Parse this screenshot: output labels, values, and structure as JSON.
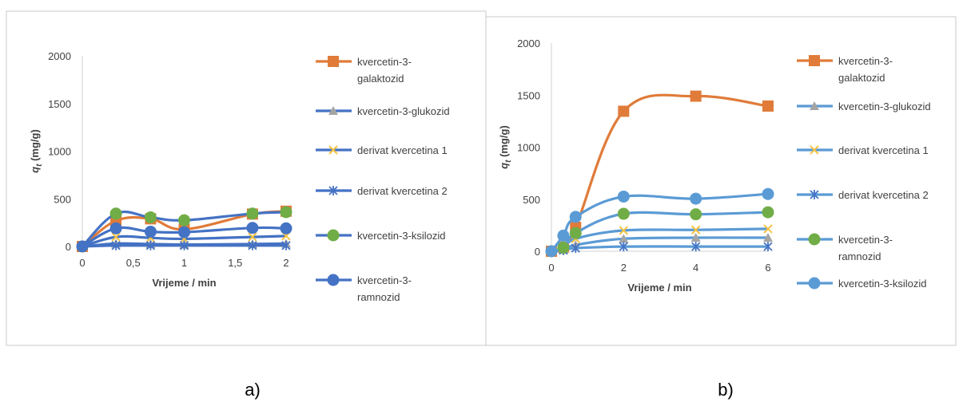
{
  "panel_labels": [
    "a)",
    "b)"
  ],
  "chart_data": [
    {
      "type": "line",
      "title": "",
      "xlabel": "Vrijeme / min",
      "ylabel": "q",
      "ylabel_sub": "t",
      "ylabel_unit": "(mg/g)",
      "xlim": [
        0,
        2
      ],
      "ylim": [
        0,
        2000
      ],
      "xticks": [
        0,
        0.5,
        1,
        1.5,
        2
      ],
      "xtick_labels": [
        "0",
        "0,5",
        "1",
        "1,5",
        "2"
      ],
      "yticks": [
        0,
        500,
        1000,
        1500,
        2000
      ],
      "ytick_labels": [
        "0",
        "500",
        "1000",
        "1500",
        "2000"
      ],
      "x": [
        0,
        0.33,
        0.67,
        1,
        1.67,
        2
      ],
      "legend_position": "right",
      "series": [
        {
          "name": "kvercetin-3-galaktozid",
          "label_lines": [
            "kvercetin-3-",
            "galaktozid"
          ],
          "color": "#e07b39",
          "marker_color": "#e07b39",
          "marker": "square",
          "values": [
            0,
            270,
            290,
            180,
            340,
            370
          ]
        },
        {
          "name": "kvercetin-3-glukozid",
          "label_lines": [
            "kvercetin-3-glukozid"
          ],
          "color": "#4472c4",
          "marker_color": "#a5a5a5",
          "marker": "triangle",
          "values": [
            0,
            30,
            25,
            20,
            25,
            30
          ]
        },
        {
          "name": "derivat kvercetina 1",
          "label_lines": [
            "derivat kvercetina 1"
          ],
          "color": "#4472c4",
          "marker_color": "#f5c342",
          "marker": "x",
          "values": [
            0,
            100,
            90,
            80,
            100,
            110
          ]
        },
        {
          "name": "derivat kvercetina 2",
          "label_lines": [
            "derivat kvercetina 2"
          ],
          "color": "#4472c4",
          "marker_color": "#4472c4",
          "marker": "star",
          "values": [
            0,
            10,
            10,
            10,
            10,
            10
          ]
        },
        {
          "name": "kvercetin-3-ksilozid",
          "label_lines": [
            "kvercetin-3-ksilozid"
          ],
          "color": "#4472c4",
          "marker_color": "#70ad47",
          "marker": "circle",
          "values": [
            0,
            345,
            305,
            275,
            345,
            360
          ]
        },
        {
          "name": "kvercetin-3-ramnozid",
          "label_lines": [
            "kvercetin-3-",
            "ramnozid"
          ],
          "color": "#4472c4",
          "marker_color": "#4472c4",
          "marker": "circle",
          "values": [
            0,
            190,
            155,
            150,
            195,
            190
          ]
        }
      ]
    },
    {
      "type": "line",
      "title": "",
      "xlabel": "Vrijeme / min",
      "ylabel": "q",
      "ylabel_sub": "t",
      "ylabel_unit": "(mg/g)",
      "xlim": [
        0,
        6
      ],
      "ylim": [
        0,
        2000
      ],
      "xticks": [
        0,
        2,
        4,
        6
      ],
      "xtick_labels": [
        "0",
        "2",
        "4",
        "6"
      ],
      "yticks": [
        0,
        500,
        1000,
        1500,
        2000
      ],
      "ytick_labels": [
        "0",
        "500",
        "1000",
        "1500",
        "2000"
      ],
      "x": [
        0,
        0.33,
        0.67,
        2,
        4,
        6
      ],
      "legend_position": "right",
      "series": [
        {
          "name": "kvercetin-3-galaktozid",
          "label_lines": [
            "kvercetin-3-",
            "galaktozid"
          ],
          "color": "#e07b39",
          "marker_color": "#e07b39",
          "marker": "square",
          "values": [
            0,
            40,
            230,
            1345,
            1490,
            1395
          ]
        },
        {
          "name": "kvercetin-3-glukozid",
          "label_lines": [
            "kvercetin-3-glukozid"
          ],
          "color": "#5b9bd5",
          "marker_color": "#a5a5a5",
          "marker": "triangle",
          "values": [
            0,
            15,
            60,
            120,
            130,
            130
          ]
        },
        {
          "name": "derivat kvercetina 1",
          "label_lines": [
            "derivat kvercetina 1"
          ],
          "color": "#5b9bd5",
          "marker_color": "#f5c342",
          "marker": "x",
          "values": [
            0,
            30,
            120,
            200,
            205,
            215
          ]
        },
        {
          "name": "derivat kvercetina 2",
          "label_lines": [
            "derivat kvercetina 2"
          ],
          "color": "#5b9bd5",
          "marker_color": "#4472c4",
          "marker": "star",
          "values": [
            0,
            10,
            30,
            45,
            45,
            45
          ]
        },
        {
          "name": "kvercetin-3-ramnozid",
          "label_lines": [
            "kvercetin-3-",
            "ramnozid"
          ],
          "color": "#5b9bd5",
          "marker_color": "#70ad47",
          "marker": "circle",
          "values": [
            0,
            35,
            175,
            360,
            355,
            375
          ]
        },
        {
          "name": "kvercetin-3-ksilozid",
          "label_lines": [
            "kvercetin-3-ksilozid"
          ],
          "color": "#5b9bd5",
          "marker_color": "#5b9bd5",
          "marker": "circle",
          "values": [
            0,
            150,
            330,
            525,
            505,
            550
          ]
        }
      ]
    }
  ]
}
